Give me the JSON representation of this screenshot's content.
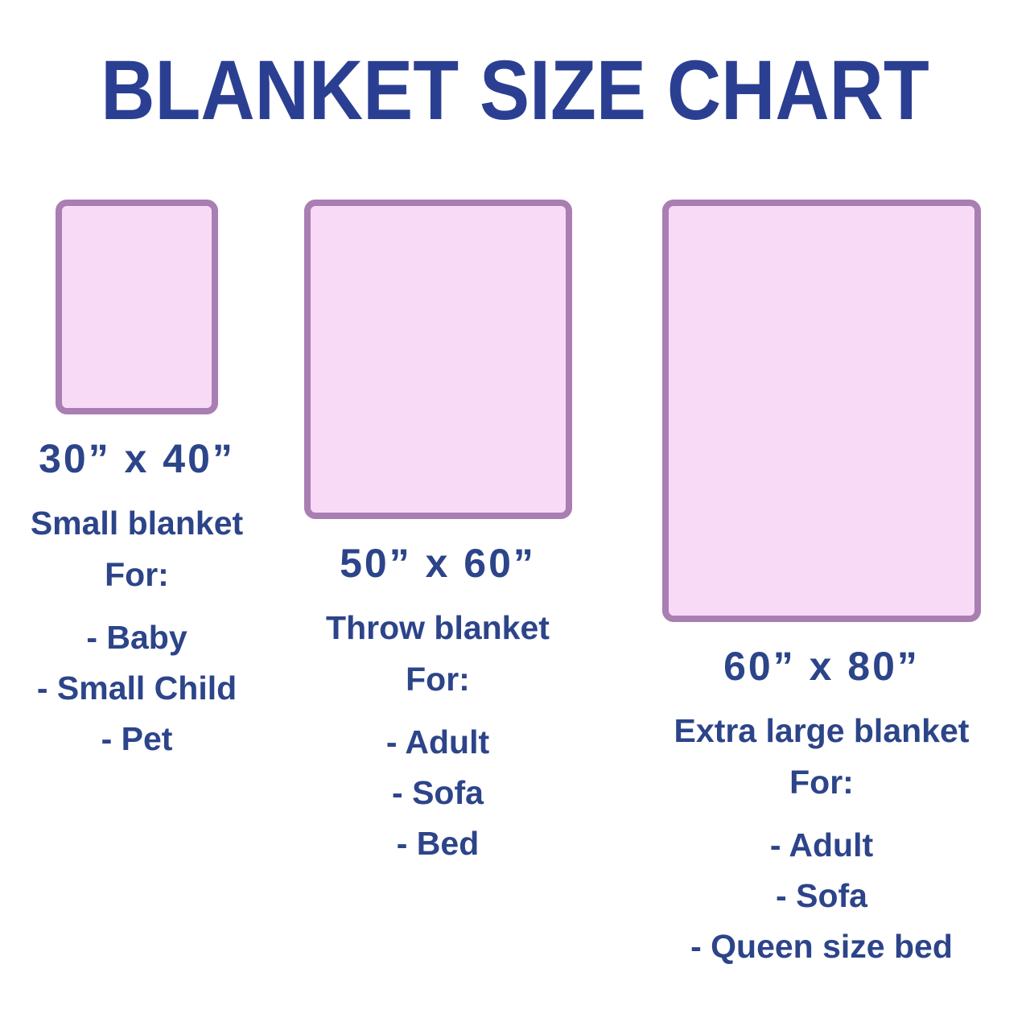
{
  "title": "BLANKET SIZE CHART",
  "colors": {
    "title_text": "#2b3f92",
    "body_text": "#2c4489",
    "blanket_fill": "#f9daf6",
    "blanket_border": "#a97eb2",
    "background": "#ffffff"
  },
  "blankets": [
    {
      "size_label": "30” x 40”",
      "name": "Small blanket",
      "for_label": "For:",
      "uses": [
        "- Baby",
        "- Small Child",
        "- Pet"
      ]
    },
    {
      "size_label": "50” x 60”",
      "name": "Throw blanket",
      "for_label": "For:",
      "uses": [
        "- Adult",
        "- Sofa",
        "- Bed"
      ]
    },
    {
      "size_label": "60” x 80”",
      "name": "Extra large blanket",
      "for_label": "For:",
      "uses": [
        "- Adult",
        "- Sofa",
        "- Queen size bed"
      ]
    }
  ]
}
